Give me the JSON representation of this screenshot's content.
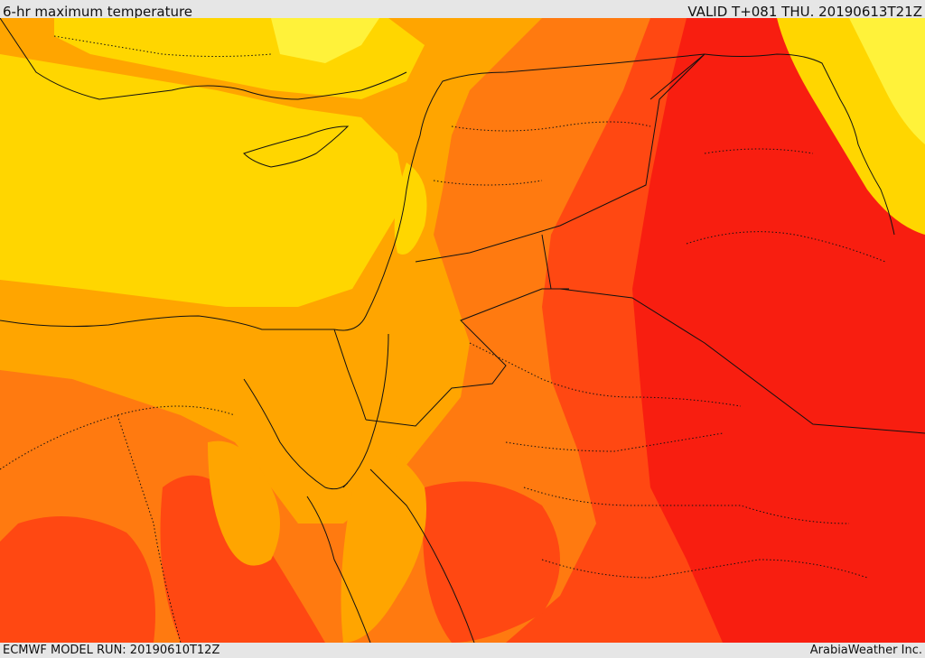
{
  "header": {
    "title": "6-hr maximum temperature",
    "valid": "VALID T+081 THU. 20190613T21Z"
  },
  "footer": {
    "model_run": "ECMWF MODEL RUN: 20190610T12Z",
    "credit": "ArabiaWeather Inc."
  },
  "colors": {
    "band_hottest": "#f81e10",
    "band_hot": "#ff4812",
    "band_warm": "#ff7a10",
    "band_mild": "#ffa500",
    "band_cool": "#ffd600",
    "band_coolest": "#fff23a",
    "border": "#111111"
  }
}
